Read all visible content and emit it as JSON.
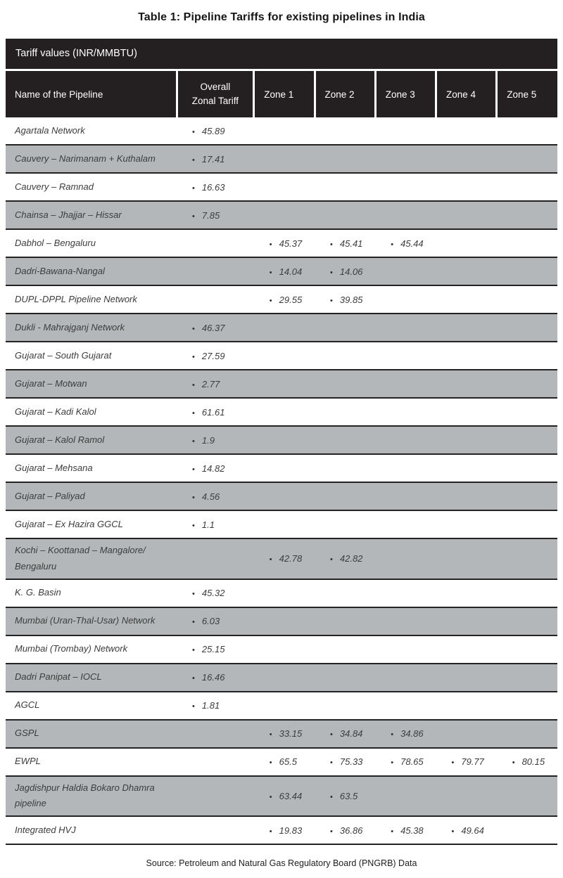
{
  "title": "Table 1: Pipeline Tariffs for existing pipelines in India",
  "table": {
    "band_title": "Tariff values (INR/MMBTU)",
    "columns": [
      "Name of the Pipeline",
      "Overall\nZonal Tariff",
      "Zone 1",
      "Zone 2",
      "Zone 3",
      "Zone 4",
      "Zone 5"
    ],
    "rows": [
      {
        "name": "Agartala Network",
        "overall": "45.89",
        "zones": [
          null,
          null,
          null,
          null,
          null
        ]
      },
      {
        "name": "Cauvery – Narimanam + Kuthalam",
        "overall": "17.41",
        "zones": [
          null,
          null,
          null,
          null,
          null
        ]
      },
      {
        "name": "Cauvery – Ramnad",
        "overall": "16.63",
        "zones": [
          null,
          null,
          null,
          null,
          null
        ]
      },
      {
        "name": "Chainsa – Jhajjar – Hissar",
        "overall": "7.85",
        "zones": [
          null,
          null,
          null,
          null,
          null
        ]
      },
      {
        "name": "Dabhol – Bengaluru",
        "overall": null,
        "zones": [
          "45.37",
          "45.41",
          "45.44",
          null,
          null
        ]
      },
      {
        "name": "Dadri-Bawana-Nangal",
        "overall": null,
        "zones": [
          "14.04",
          "14.06",
          null,
          null,
          null
        ]
      },
      {
        "name": "DUPL-DPPL Pipeline Network",
        "overall": null,
        "zones": [
          "29.55",
          "39.85",
          null,
          null,
          null
        ]
      },
      {
        "name": "Dukli - Mahrajganj Network",
        "overall": "46.37",
        "zones": [
          null,
          null,
          null,
          null,
          null
        ]
      },
      {
        "name": "Gujarat – South Gujarat",
        "overall": "27.59",
        "zones": [
          null,
          null,
          null,
          null,
          null
        ]
      },
      {
        "name": "Gujarat – Motwan",
        "overall": "2.77",
        "zones": [
          null,
          null,
          null,
          null,
          null
        ]
      },
      {
        "name": "Gujarat – Kadi Kalol",
        "overall": "61.61",
        "zones": [
          null,
          null,
          null,
          null,
          null
        ]
      },
      {
        "name": "Gujarat – Kalol Ramol",
        "overall": "1.9",
        "zones": [
          null,
          null,
          null,
          null,
          null
        ]
      },
      {
        "name": "Gujarat – Mehsana",
        "overall": "14.82",
        "zones": [
          null,
          null,
          null,
          null,
          null
        ]
      },
      {
        "name": "Gujarat – Paliyad",
        "overall": "4.56",
        "zones": [
          null,
          null,
          null,
          null,
          null
        ]
      },
      {
        "name": "Gujarat – Ex Hazira GGCL",
        "overall": "1.1",
        "zones": [
          null,
          null,
          null,
          null,
          null
        ]
      },
      {
        "name": "Kochi – Koottanad – Mangalore/\nBengaluru",
        "overall": null,
        "zones": [
          "42.78",
          "42.82",
          null,
          null,
          null
        ]
      },
      {
        "name": "K. G. Basin",
        "overall": "45.32",
        "zones": [
          null,
          null,
          null,
          null,
          null
        ]
      },
      {
        "name": "Mumbai (Uran-Thal-Usar) Network",
        "overall": "6.03",
        "zones": [
          null,
          null,
          null,
          null,
          null
        ]
      },
      {
        "name": "Mumbai (Trombay) Network",
        "overall": "25.15",
        "zones": [
          null,
          null,
          null,
          null,
          null
        ]
      },
      {
        "name": "Dadri Panipat – IOCL",
        "overall": "16.46",
        "zones": [
          null,
          null,
          null,
          null,
          null
        ]
      },
      {
        "name": "AGCL",
        "overall": "1.81",
        "zones": [
          null,
          null,
          null,
          null,
          null
        ]
      },
      {
        "name": "GSPL",
        "overall": null,
        "zones": [
          "33.15",
          "34.84",
          "34.86",
          null,
          null
        ]
      },
      {
        "name": "EWPL",
        "overall": null,
        "zones": [
          "65.5",
          "75.33",
          "78.65",
          "79.77",
          "80.15"
        ]
      },
      {
        "name": "Jagdishpur Haldia Bokaro Dhamra\npipeline",
        "overall": null,
        "zones": [
          "63.44",
          "63.5",
          null,
          null,
          null
        ]
      },
      {
        "name": "Integrated HVJ",
        "overall": null,
        "zones": [
          "19.83",
          "36.86",
          "45.38",
          "49.64",
          null
        ]
      }
    ]
  },
  "source": "Source: Petroleum and Natural Gas Regulatory Board (PNGRB) Data",
  "colors": {
    "header_bg": "#241f20",
    "stripe_bg": "#b4b7b9",
    "row_border": "#232323",
    "header_text": "#ffffff"
  },
  "bullet_glyph": "•"
}
